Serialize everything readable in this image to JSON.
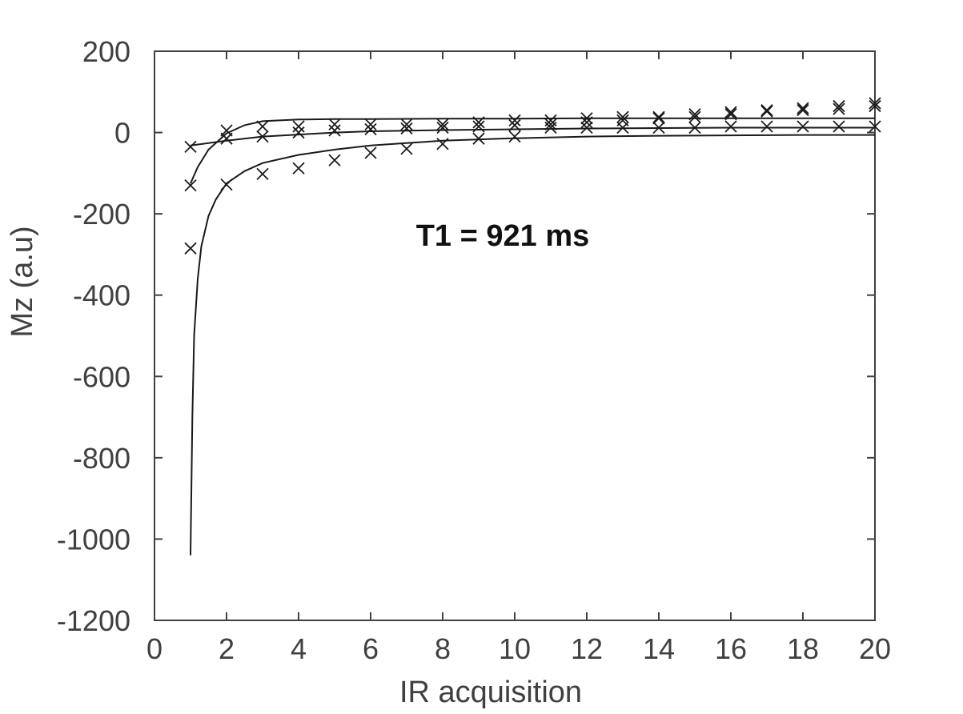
{
  "chart_data": {
    "type": "scatter",
    "title": "",
    "xlabel": "IR acquisition",
    "ylabel": "Mz (a.u)",
    "xlim": [
      0,
      20
    ],
    "ylim": [
      -1200,
      200
    ],
    "xticks": [
      0,
      2,
      4,
      6,
      8,
      10,
      12,
      14,
      16,
      18,
      20
    ],
    "yticks": [
      200,
      0,
      -200,
      -400,
      -600,
      -800,
      -1000,
      -1200
    ],
    "grid": false,
    "legend": "none",
    "annotation": "T1 = 921 ms",
    "colors": {
      "marks": "#1a1a1a",
      "axes": "#404040",
      "text": "#404040"
    },
    "series": [
      {
        "marker": "x",
        "x": [
          1,
          2,
          3,
          4,
          5,
          6,
          7,
          8,
          9,
          10,
          11,
          12,
          13,
          14,
          15,
          16,
          17,
          18,
          19,
          20
        ],
        "y": [
          -130,
          5,
          15,
          15,
          20,
          20,
          20,
          20,
          25,
          30,
          30,
          35,
          38,
          38,
          45,
          50,
          55,
          60,
          65,
          72
        ]
      },
      {
        "marker": "x",
        "x": [
          1,
          2,
          3,
          4,
          5,
          6,
          7,
          8,
          9,
          10,
          11,
          12,
          13,
          14,
          15,
          16,
          17,
          18,
          19,
          20
        ],
        "y": [
          -35,
          -15,
          -10,
          0,
          5,
          8,
          10,
          12,
          15,
          18,
          20,
          25,
          30,
          35,
          38,
          45,
          52,
          55,
          58,
          65
        ]
      },
      {
        "marker": "x",
        "x": [
          1,
          2,
          3,
          4,
          5,
          6,
          7,
          8,
          9,
          10,
          11,
          12,
          13,
          14,
          15,
          16,
          17,
          18,
          19,
          20
        ],
        "y": [
          -285,
          -128,
          -102,
          -88,
          -68,
          -50,
          -40,
          -28,
          -15,
          -10,
          12,
          12,
          12,
          12,
          12,
          15,
          15,
          15,
          15,
          15
        ]
      }
    ],
    "fit_curves": [
      {
        "x": [
          1,
          1.2,
          1.5,
          2,
          2.5,
          3,
          4,
          5,
          6,
          8,
          10,
          12,
          14,
          16,
          18,
          20
        ],
        "y": [
          -125,
          -85,
          -42,
          -2,
          18,
          28,
          32,
          33,
          33,
          34,
          34,
          35,
          35,
          35,
          35,
          35
        ]
      },
      {
        "x": [
          1,
          2,
          3,
          4,
          5,
          6,
          8,
          10,
          12,
          14,
          16,
          18,
          20
        ],
        "y": [
          -32,
          -20,
          -10,
          -5,
          0,
          3,
          6,
          8,
          10,
          11,
          12,
          12,
          12
        ]
      },
      {
        "x": [
          1,
          1.05,
          1.1,
          1.2,
          1.3,
          1.5,
          1.7,
          2,
          2.5,
          3,
          4,
          5,
          6,
          8,
          10,
          12,
          14,
          16,
          18,
          20
        ],
        "y": [
          -1040,
          -700,
          -500,
          -360,
          -280,
          -205,
          -165,
          -125,
          -95,
          -75,
          -55,
          -42,
          -32,
          -20,
          -14,
          -10,
          -8,
          -7,
          -6,
          -6
        ]
      }
    ]
  }
}
